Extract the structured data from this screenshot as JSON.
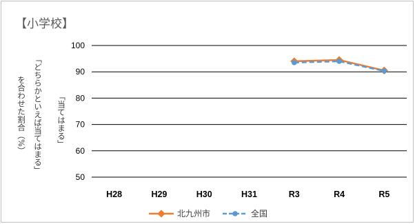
{
  "chart_data": {
    "type": "line",
    "title": "【小学校】",
    "ylabel_lines": [
      "「どちらかといえば当てはまる」",
      "「当てはまる」",
      "を合わせた割合（%）"
    ],
    "categories": [
      "H28",
      "H29",
      "H30",
      "H31",
      "R3",
      "R4",
      "R5"
    ],
    "ylim": [
      50,
      100
    ],
    "yticks": [
      50,
      60,
      70,
      80,
      90,
      100
    ],
    "grid": true,
    "legend_position": "bottom",
    "series": [
      {
        "name": "北九州市",
        "color": "#ed7d31",
        "values": [
          null,
          null,
          null,
          null,
          94.0,
          94.5,
          90.5
        ]
      },
      {
        "name": "全国",
        "color": "#5b9bd5",
        "values": [
          null,
          null,
          null,
          null,
          93.5,
          94.0,
          90.3
        ]
      }
    ]
  }
}
